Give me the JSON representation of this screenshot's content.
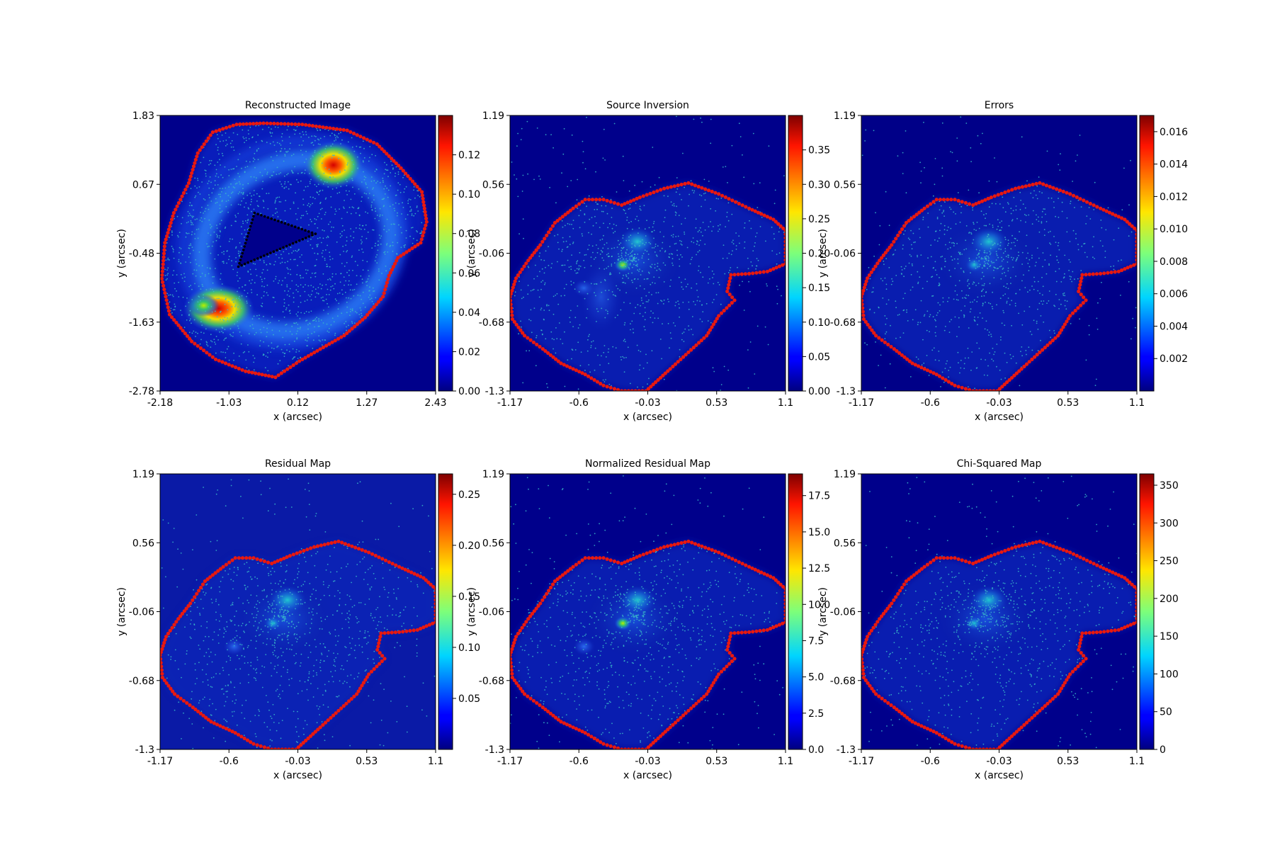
{
  "figure": {
    "background": "#ffffff"
  },
  "chart_data": [
    {
      "type": "heatmap",
      "title": "Reconstructed Image",
      "xlabel": "x (arcsec)",
      "ylabel": "y (arcsec)",
      "xlim": [
        -2.18,
        2.43
      ],
      "ylim": [
        -2.78,
        1.83
      ],
      "xticks": [
        "-2.18",
        "-1.03",
        "0.12",
        "1.27",
        "2.43"
      ],
      "yticks": [
        "-2.78",
        "-1.63",
        "-0.48",
        "0.67",
        "1.83"
      ],
      "colorbar": {
        "ticks": [
          "0.00",
          "0.02",
          "0.04",
          "0.06",
          "0.08",
          "0.10",
          "0.12"
        ],
        "values": [
          0,
          0.02,
          0.04,
          0.06,
          0.08,
          0.1,
          0.12
        ],
        "vmin": 0,
        "vmax": 0.14,
        "colormap": "jet"
      },
      "features": {
        "ring": true,
        "hotspots": [
          {
            "x": 0.7,
            "y": 1.0,
            "value": 0.13
          },
          {
            "x": -1.2,
            "y": -1.4,
            "value": 0.13
          },
          {
            "x": -1.45,
            "y": -1.35,
            "value": 0.1
          }
        ],
        "mask_border_color": "#e8190f",
        "hole_border_color": "#000000"
      }
    },
    {
      "type": "heatmap",
      "title": "Source Inversion",
      "xlabel": "x (arcsec)",
      "ylabel": "y (arcsec)",
      "xlim": [
        -1.17,
        1.1
      ],
      "ylim": [
        -1.3,
        1.19
      ],
      "xticks": [
        "-1.17",
        "-0.6",
        "-0.03",
        "0.53",
        "1.1"
      ],
      "yticks": [
        "-1.3",
        "-0.68",
        "-0.06",
        "0.56",
        "1.19"
      ],
      "colorbar": {
        "ticks": [
          "0.00",
          "0.05",
          "0.10",
          "0.15",
          "0.20",
          "0.25",
          "0.30",
          "0.35"
        ],
        "values": [
          0,
          0.05,
          0.1,
          0.15,
          0.2,
          0.25,
          0.3,
          0.35
        ],
        "vmin": 0,
        "vmax": 0.4,
        "colormap": "jet"
      },
      "features": {
        "hotspots": [
          {
            "x": -0.24,
            "y": -0.16,
            "value": 0.2
          },
          {
            "x": -0.56,
            "y": -0.37,
            "value": 0.09
          }
        ],
        "border_color": "#e8190f"
      }
    },
    {
      "type": "heatmap",
      "title": "Errors",
      "xlabel": "x (arcsec)",
      "ylabel": "y (arcsec)",
      "xlim": [
        -1.17,
        1.1
      ],
      "ylim": [
        -1.3,
        1.19
      ],
      "xticks": [
        "-1.17",
        "-0.6",
        "-0.03",
        "0.53",
        "1.1"
      ],
      "yticks": [
        "-1.3",
        "-0.68",
        "-0.06",
        "0.56",
        "1.19"
      ],
      "colorbar": {
        "ticks": [
          "0.002",
          "0.004",
          "0.006",
          "0.008",
          "0.010",
          "0.012",
          "0.014",
          "0.016"
        ],
        "values": [
          0.002,
          0.004,
          0.006,
          0.008,
          0.01,
          0.012,
          0.014,
          0.016
        ],
        "vmin": 0,
        "vmax": 0.017,
        "colormap": "jet"
      },
      "features": {
        "hotspots": [
          {
            "x": -0.2,
            "y": -0.18,
            "value": 0.008
          }
        ],
        "border_color": "#e8190f"
      }
    },
    {
      "type": "heatmap",
      "title": "Residual Map",
      "xlabel": "x (arcsec)",
      "ylabel": "y (arcsec)",
      "xlim": [
        -1.17,
        1.1
      ],
      "ylim": [
        -1.3,
        1.19
      ],
      "xticks": [
        "-1.17",
        "-0.6",
        "-0.03",
        "0.53",
        "1.1"
      ],
      "yticks": [
        "-1.3",
        "-0.68",
        "-0.06",
        "0.56",
        "1.19"
      ],
      "colorbar": {
        "ticks": [
          "0.05",
          "0.10",
          "0.15",
          "0.20",
          "0.25"
        ],
        "values": [
          0.05,
          0.1,
          0.15,
          0.2,
          0.25
        ],
        "vmin": 0,
        "vmax": 0.27,
        "colormap": "jet"
      },
      "features": {
        "hotspots": [
          {
            "x": -0.24,
            "y": -0.16,
            "value": 0.15
          },
          {
            "x": -0.56,
            "y": -0.37,
            "value": 0.05
          }
        ],
        "border_color": "#e8190f"
      }
    },
    {
      "type": "heatmap",
      "title": "Normalized Residual Map",
      "xlabel": "x (arcsec)",
      "ylabel": "y (arcsec)",
      "xlim": [
        -1.17,
        1.1
      ],
      "ylim": [
        -1.3,
        1.19
      ],
      "xticks": [
        "-1.17",
        "-0.6",
        "-0.03",
        "0.53",
        "1.1"
      ],
      "yticks": [
        "-1.3",
        "-0.68",
        "-0.06",
        "0.56",
        "1.19"
      ],
      "colorbar": {
        "ticks": [
          "0.0",
          "2.5",
          "5.0",
          "7.5",
          "10.0",
          "12.5",
          "15.0",
          "17.5"
        ],
        "values": [
          0,
          2.5,
          5.0,
          7.5,
          10.0,
          12.5,
          15.0,
          17.5
        ],
        "vmin": 0,
        "vmax": 19,
        "colormap": "jet"
      },
      "features": {
        "hotspots": [
          {
            "x": -0.24,
            "y": -0.16,
            "value": 9
          },
          {
            "x": -0.56,
            "y": -0.37,
            "value": 4
          }
        ],
        "border_color": "#e8190f"
      }
    },
    {
      "type": "heatmap",
      "title": "Chi-Squared Map",
      "xlabel": "x (arcsec)",
      "ylabel": "y (arcsec)",
      "xlim": [
        -1.17,
        1.1
      ],
      "ylim": [
        -1.3,
        1.19
      ],
      "xticks": [
        "-1.17",
        "-0.6",
        "-0.03",
        "0.53",
        "1.1"
      ],
      "yticks": [
        "-1.3",
        "-0.68",
        "-0.06",
        "0.56",
        "1.19"
      ],
      "colorbar": {
        "ticks": [
          "0",
          "50",
          "100",
          "150",
          "200",
          "250",
          "300",
          "350"
        ],
        "values": [
          0,
          50,
          100,
          150,
          200,
          250,
          300,
          350
        ],
        "vmin": 0,
        "vmax": 365,
        "colormap": "jet"
      },
      "features": {
        "hotspots": [
          {
            "x": -0.24,
            "y": -0.16,
            "value": 120
          }
        ],
        "border_color": "#e8190f"
      }
    }
  ]
}
